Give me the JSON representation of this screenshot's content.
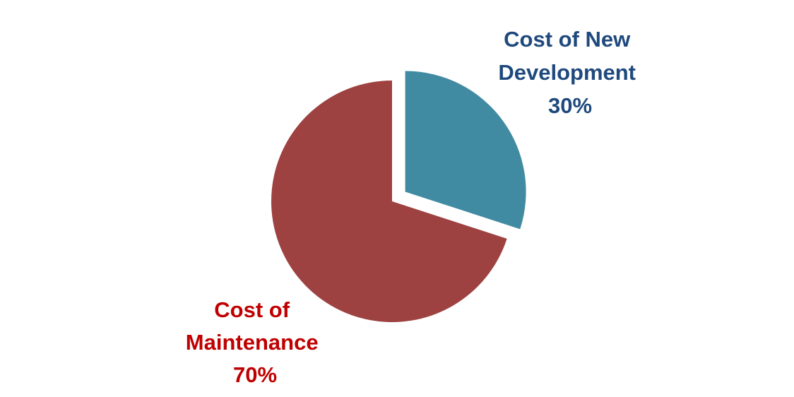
{
  "chart_data": {
    "type": "pie",
    "title": "",
    "explode": [
      "Cost of New Development"
    ],
    "slices": [
      {
        "label_lines": [
          "Cost of New",
          "Development"
        ],
        "name": "Cost of New Development",
        "value": 30,
        "value_label": "30%",
        "color": "#418BA2",
        "label_color": "#1F497D"
      },
      {
        "label_lines": [
          "Cost of",
          "Maintenance"
        ],
        "name": "Cost of Maintenance",
        "value": 70,
        "value_label": "70%",
        "color": "#9E4141",
        "label_color": "#C00000"
      }
    ]
  }
}
